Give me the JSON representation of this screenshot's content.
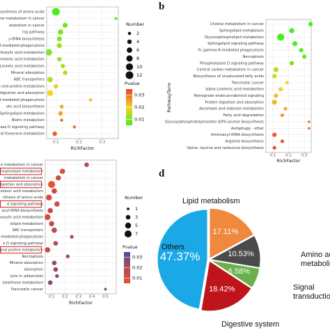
{
  "chart_data": [
    {
      "type": "bubble",
      "xlabel": "RichFactor",
      "categories": [
        "osynthesis of amino acids",
        "holine metabolism in cancer",
        "etabolism in cancer",
        "ing pathway",
        "y-tRNA biosynthesis",
        "R-mediated phagocytosis",
        "arboxylic acid metabolism",
        "-Linolenic acid metabolism",
        "Linoleic acid metabolism",
        "Mineral absorption",
        "ABC transporters",
        "e and proline metabolism",
        "- digestion and absorption",
        "R-mediated phagocytosis",
        "olic acid biosynthesis",
        "Sphingolipid metabolism",
        "Biotin metabolism",
        "pase D signaling pathway",
        "and threonine metabolism"
      ],
      "richfactor": [
        0.1,
        0.36,
        0.14,
        0.12,
        0.115,
        0.115,
        0.07,
        0.115,
        0.13,
        0.14,
        0.075,
        0.1,
        0.075,
        0.25,
        0.125,
        0.12,
        0.125,
        0.18,
        0.095
      ],
      "number": [
        12,
        2,
        5,
        6,
        5,
        5,
        8,
        4,
        4,
        4,
        6,
        4,
        7,
        2,
        3,
        4,
        2,
        2,
        4
      ],
      "pvalue": [
        0.005,
        0.01,
        0.008,
        0.01,
        0.01,
        0.012,
        0.01,
        0.012,
        0.013,
        0.014,
        0.015,
        0.018,
        0.02,
        0.022,
        0.024,
        0.025,
        0.03,
        0.03,
        0.032
      ],
      "xlim": [
        0.06,
        0.37
      ],
      "xticks": [
        0.1,
        0.2,
        0.3
      ],
      "size_legend_title": "Number",
      "size_legend": [
        2,
        4,
        6,
        8,
        10,
        12
      ],
      "color_legend_title": "Pvalue",
      "color_ticks": [
        0.03,
        0.02,
        0.01
      ],
      "clim": [
        0.005,
        0.035
      ],
      "colorscale": [
        "#44ee22",
        "#f5d327",
        "#e8402a"
      ],
      "grid": true
    },
    {
      "type": "bubble",
      "panel_label": "b",
      "xlabel": "RichFactor",
      "ylabel": "PathwayTerm",
      "categories": [
        "Choline metabolism in cancer",
        "Sphingolipid metabolism",
        "Glycerophospholipid metabolism",
        "Sphingolipid signaling pathway",
        "Fc gamma R-mediated phagocytosis",
        "Necroptosis",
        "Phospholipase D signaling pathway",
        "Central carbon metabolism in cancer",
        "Biosynthesis of unsaturated fatty acids",
        "Pancreatic cancer",
        "alpha-Linolenic acid metabolism",
        "Retrograde endocannabinoid signaling",
        "Protein digestion and absorption",
        "Ascorbate and aldarate metabolism",
        "Fatty acid degradation",
        "Glycosylphosphatidylinositol (GPI)-anchor biosynthesis",
        "Autophagy - other",
        "Aminoacyl-tRNA biosynthesis",
        "Arginine biosynthesis",
        "Valine, leucine and isoleucine biosynthesis"
      ],
      "richfactor": [
        0.34,
        0.22,
        0.15,
        0.24,
        0.28,
        0.3,
        0.22,
        0.12,
        0.11,
        0.19,
        0.15,
        0.12,
        0.11,
        0.18,
        0.16,
        0.33,
        0.33,
        0.11,
        0.16,
        0.11
      ],
      "number": [
        3,
        4,
        8,
        4,
        3,
        3,
        3,
        4,
        3,
        2,
        3,
        3,
        4,
        2,
        2,
        1,
        1,
        3,
        2,
        2
      ],
      "pvalue": [
        0.004,
        0.005,
        0.004,
        0.006,
        0.007,
        0.008,
        0.009,
        0.015,
        0.016,
        0.02,
        0.02,
        0.022,
        0.023,
        0.025,
        0.026,
        0.03,
        0.03,
        0.032,
        0.033,
        0.034
      ],
      "xlim": [
        0.056,
        0.344
      ],
      "xticks": [
        0.1,
        0.2,
        0.3
      ],
      "clim": [
        0.005,
        0.035
      ],
      "colorscale": [
        "#44ee22",
        "#f5d327",
        "#e8402a"
      ],
      "grid": true
    },
    {
      "type": "bubble",
      "xlabel": "RichFactor",
      "categories": [
        "e metabolism in cancer",
        "phospholipid metabolism",
        "metabolism in cancer",
        "igestion and absorption",
        "Linolenic acid metabolism",
        "nthesis of amino acids",
        "d signaling pathway",
        "acyl-tRNA biosynthesis",
        "aboxylic acid metabolism",
        "lolipid metabolism",
        "ABC transporters",
        "R-mediated phagocytosis",
        "e D signaling pathway",
        "and proline metabolism",
        "Necroptosis",
        "Mineral absorption",
        "absorption",
        "lysis in adipocytes",
        "lutathione metabolism",
        "Pancreatic cancer"
      ],
      "richfactor": [
        0.36,
        0.18,
        0.15,
        0.1,
        0.12,
        0.08,
        0.14,
        0.09,
        0.07,
        0.1,
        0.12,
        0.25,
        0.13,
        0.07,
        0.22,
        0.12,
        0.13,
        0.14,
        0.09,
        0.5
      ],
      "number": [
        3,
        4,
        4,
        7,
        4,
        5,
        4,
        4,
        5,
        4,
        4,
        2,
        3,
        4,
        2,
        3,
        3,
        2,
        3,
        1
      ],
      "pvalue": [
        0.018,
        0.008,
        0.012,
        0.005,
        0.014,
        0.01,
        0.012,
        0.016,
        0.012,
        0.015,
        0.018,
        0.02,
        0.02,
        0.014,
        0.022,
        0.024,
        0.025,
        0.026,
        0.026,
        0.03
      ],
      "xlim": [
        0.053,
        0.58
      ],
      "xticks": [
        0.1,
        0.2,
        0.3,
        0.4,
        0.5
      ],
      "size_legend_title": "Number",
      "size_legend": [
        1,
        3,
        5,
        7
      ],
      "color_legend_title": "Pvalue",
      "color_ticks": [
        0.03,
        0.02,
        0.01
      ],
      "clim": [
        0.005,
        0.035
      ],
      "colorscale": [
        "#e8502e",
        "#b04a5c",
        "#4a4c98"
      ],
      "grid": true
    },
    {
      "type": "pie",
      "panel_label": "d",
      "categories": [
        "Lipid metabolism",
        "Amino acid metabolism",
        "Signal transduction",
        "Digestive system",
        "Others"
      ],
      "values": [
        17.11,
        10.53,
        6.58,
        18.42,
        47.37
      ],
      "value_labels": [
        "17.11%",
        "10.53%",
        "6.58%",
        "18.42%",
        "47.37%"
      ],
      "colors": [
        "#f0883e",
        "#4a4a4a",
        "#6ab04c",
        "#c0141c",
        "#1ba8e6"
      ]
    }
  ]
}
